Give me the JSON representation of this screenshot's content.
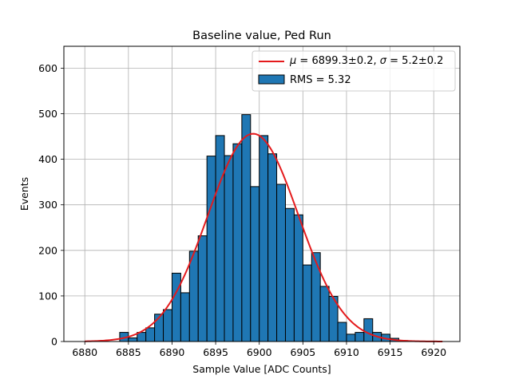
{
  "chart_data": {
    "type": "bar",
    "title": "Baseline value, Ped Run",
    "xlabel": "Sample Value [ADC Counts]",
    "ylabel": "Events",
    "xlim": [
      6877.6,
      6923.0
    ],
    "ylim": [
      0,
      648
    ],
    "xticks": [
      6880,
      6885,
      6890,
      6895,
      6900,
      6905,
      6910,
      6915,
      6920
    ],
    "yticks": [
      0,
      100,
      200,
      300,
      400,
      500,
      600
    ],
    "grid": true,
    "legend_position": "top-right",
    "bar_color": "#1f77b4",
    "fit_color": "#e41a1c",
    "histogram": {
      "name": "RMS = 5.32",
      "bin_width": 1.0,
      "bin_starts": [
        6884,
        6885,
        6886,
        6887,
        6888,
        6889,
        6890,
        6891,
        6892,
        6893,
        6894,
        6895,
        6896,
        6897,
        6898,
        6899,
        6900,
        6901,
        6902,
        6903,
        6904,
        6905,
        6906,
        6907,
        6908,
        6909,
        6910,
        6911,
        6912,
        6913,
        6914,
        6915,
        6916
      ],
      "values": [
        20,
        8,
        20,
        30,
        60,
        70,
        150,
        107,
        198,
        232,
        407,
        452,
        408,
        434,
        498,
        340,
        452,
        412,
        345,
        292,
        278,
        168,
        195,
        121,
        99,
        42,
        16,
        20,
        50,
        20,
        16,
        7,
        2
      ]
    },
    "fit": {
      "name": "$\\mu = 6899.3 \\pm 0.2,\\ \\sigma = 5.2 \\pm 0.2$",
      "mu": 6899.3,
      "sigma": 5.2,
      "amplitude": 456,
      "x_range": [
        6880,
        6921
      ]
    },
    "legend": [
      {
        "type": "line",
        "text_html": "<i>μ</i> = 6899.3±0.2, <i>σ</i> = 5.2±0.2"
      },
      {
        "type": "patch",
        "label": "RMS = 5.32"
      }
    ]
  }
}
